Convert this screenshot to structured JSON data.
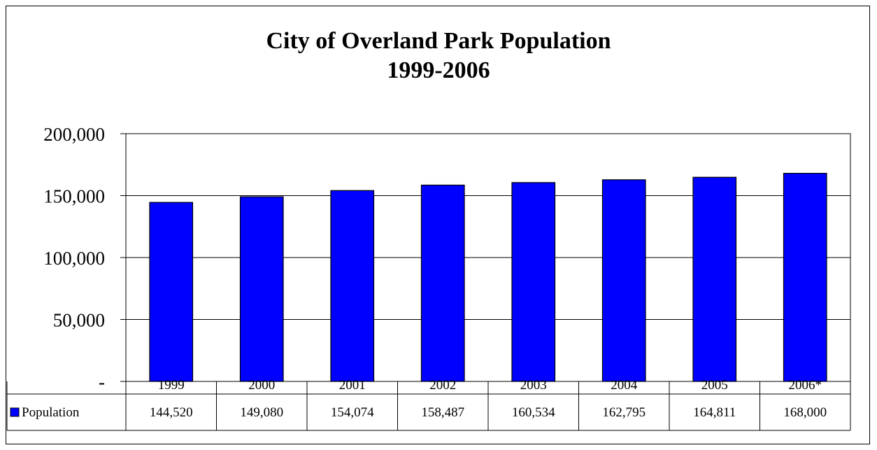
{
  "chart_data": {
    "type": "bar",
    "title": [
      "City of Overland Park Population",
      "1999-2006"
    ],
    "categories": [
      "1999",
      "2000",
      "2001",
      "2002",
      "2003",
      "2004",
      "2005",
      "2006*"
    ],
    "series": [
      {
        "name": "Population",
        "values": [
          144520,
          149080,
          154074,
          158487,
          160534,
          162795,
          164811,
          168000
        ],
        "display_values": [
          "144,520",
          "149,080",
          "154,074",
          "158,487",
          "160,534",
          "162,795",
          "164,811",
          "168,000"
        ],
        "color": "#0000FF"
      }
    ],
    "ylim": [
      0,
      200000
    ],
    "yticks": [
      0,
      50000,
      100000,
      150000,
      200000
    ],
    "ytick_labels": [
      "-",
      "50,000",
      "100,000",
      "150,000",
      "200,000"
    ],
    "grid": true,
    "data_table": true,
    "legend_placement": "data-table"
  }
}
